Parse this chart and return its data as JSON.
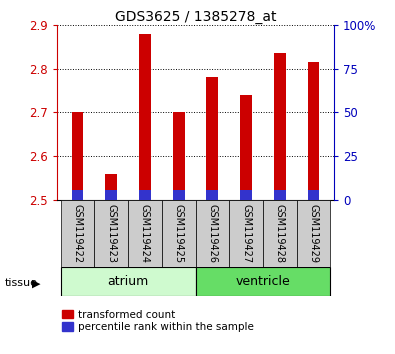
{
  "title": "GDS3625 / 1385278_at",
  "samples": [
    "GSM119422",
    "GSM119423",
    "GSM119424",
    "GSM119425",
    "GSM119426",
    "GSM119427",
    "GSM119428",
    "GSM119429"
  ],
  "red_values": [
    2.7,
    2.56,
    2.88,
    2.7,
    2.78,
    2.74,
    2.835,
    2.815
  ],
  "blue_heights": [
    0.022,
    0.022,
    0.022,
    0.022,
    0.022,
    0.022,
    0.022,
    0.022
  ],
  "baseline": 2.5,
  "ylim": [
    2.5,
    2.9
  ],
  "yticks": [
    2.5,
    2.6,
    2.7,
    2.8,
    2.9
  ],
  "y2ticks": [
    0,
    25,
    50,
    75,
    100
  ],
  "y2ticklabels": [
    "0",
    "25",
    "50",
    "75",
    "100%"
  ],
  "groups": [
    {
      "label": "atrium",
      "indices": [
        0,
        1,
        2,
        3
      ],
      "color": "#cffacf"
    },
    {
      "label": "ventricle",
      "indices": [
        4,
        5,
        6,
        7
      ],
      "color": "#66dd66"
    }
  ],
  "red_color": "#cc0000",
  "blue_color": "#3333cc",
  "bar_width": 0.35,
  "grid_color": "#000000",
  "bg_color": "#ffffff",
  "label_bg": "#cccccc",
  "title_color": "#000000",
  "left_axis_color": "#cc0000",
  "right_axis_color": "#0000bb"
}
